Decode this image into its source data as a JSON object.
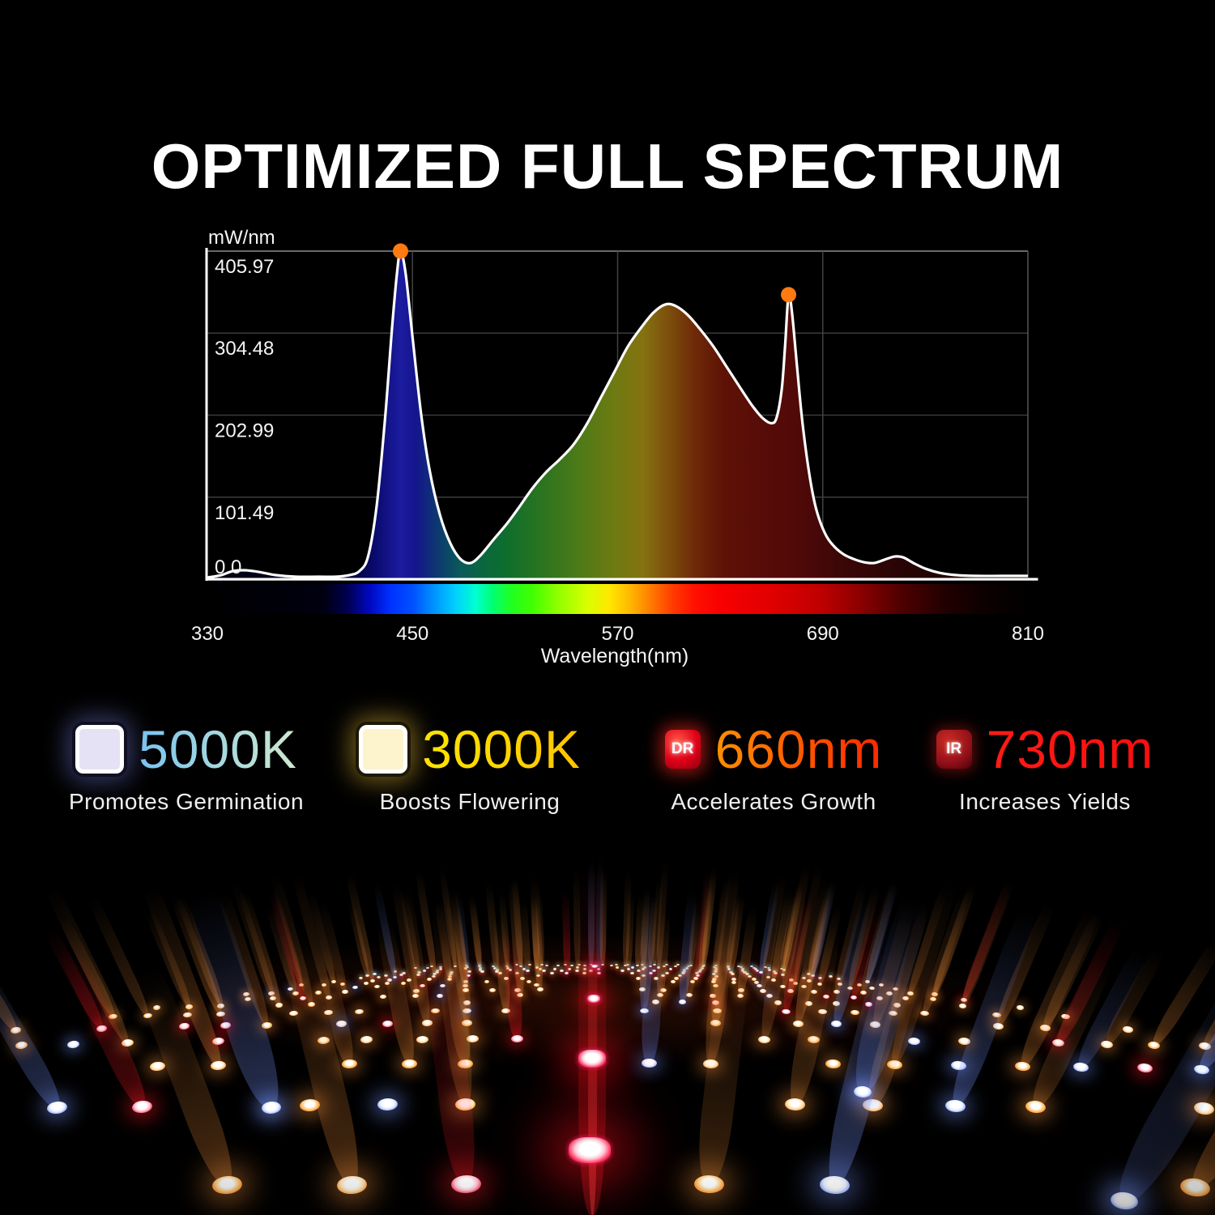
{
  "title": "OPTIMIZED FULL SPECTRUM",
  "chart_data": {
    "type": "area",
    "title": "OPTIMIZED FULL SPECTRUM",
    "unit_label": "mW/nm",
    "xlabel": "Wavelength(nm)",
    "x_ticks": [
      "330",
      "450",
      "570",
      "690",
      "810"
    ],
    "y_ticks": [
      "405.97",
      "304.48",
      "202.99",
      "101.49",
      "0.0"
    ],
    "xlim": [
      330,
      810
    ],
    "ylim": [
      0,
      405.97
    ],
    "grid": true,
    "line_color": "#ffffff",
    "marker_color": "#ff7a10",
    "peak_markers": [
      {
        "wavelength": 443,
        "value": 405.97
      },
      {
        "wavelength": 670,
        "value": 352
      }
    ],
    "series": [
      {
        "name": "spectral power distribution",
        "points": [
          [
            330,
            2
          ],
          [
            338,
            5
          ],
          [
            345,
            10
          ],
          [
            352,
            11
          ],
          [
            360,
            9
          ],
          [
            370,
            5
          ],
          [
            382,
            3
          ],
          [
            395,
            3
          ],
          [
            405,
            3
          ],
          [
            413,
            5
          ],
          [
            419,
            10
          ],
          [
            424,
            28
          ],
          [
            429,
            90
          ],
          [
            434,
            200
          ],
          [
            438,
            310
          ],
          [
            441,
            380
          ],
          [
            443,
            406
          ],
          [
            446,
            378
          ],
          [
            450,
            300
          ],
          [
            455,
            205
          ],
          [
            460,
            135
          ],
          [
            466,
            80
          ],
          [
            472,
            45
          ],
          [
            478,
            25
          ],
          [
            484,
            20
          ],
          [
            490,
            30
          ],
          [
            497,
            48
          ],
          [
            505,
            68
          ],
          [
            512,
            88
          ],
          [
            520,
            112
          ],
          [
            528,
            132
          ],
          [
            536,
            148
          ],
          [
            544,
            166
          ],
          [
            552,
            192
          ],
          [
            560,
            224
          ],
          [
            568,
            256
          ],
          [
            576,
            288
          ],
          [
            584,
            312
          ],
          [
            591,
            330
          ],
          [
            598,
            340
          ],
          [
            604,
            338
          ],
          [
            611,
            327
          ],
          [
            618,
            310
          ],
          [
            626,
            288
          ],
          [
            634,
            262
          ],
          [
            642,
            236
          ],
          [
            649,
            214
          ],
          [
            655,
            199
          ],
          [
            660,
            193
          ],
          [
            663,
            200
          ],
          [
            666,
            235
          ],
          [
            668,
            290
          ],
          [
            670,
            352
          ],
          [
            672,
            330
          ],
          [
            675,
            262
          ],
          [
            678,
            196
          ],
          [
            682,
            132
          ],
          [
            686,
            88
          ],
          [
            691,
            58
          ],
          [
            696,
            42
          ],
          [
            702,
            31
          ],
          [
            708,
            25
          ],
          [
            714,
            21
          ],
          [
            720,
            20
          ],
          [
            726,
            24
          ],
          [
            732,
            28
          ],
          [
            737,
            27
          ],
          [
            743,
            20
          ],
          [
            750,
            13
          ],
          [
            758,
            8
          ],
          [
            768,
            5
          ],
          [
            780,
            4
          ],
          [
            795,
            4
          ],
          [
            810,
            4
          ]
        ]
      }
    ],
    "area_fill_stops": [
      [
        330,
        "#000010"
      ],
      [
        410,
        "#00002a"
      ],
      [
        428,
        "#0a0a6e"
      ],
      [
        443,
        "#1c1ca0"
      ],
      [
        452,
        "#15158c"
      ],
      [
        465,
        "#0d3a6e"
      ],
      [
        478,
        "#0a5a5a"
      ],
      [
        490,
        "#0a6640"
      ],
      [
        505,
        "#0e6e2c"
      ],
      [
        525,
        "#2a7420"
      ],
      [
        548,
        "#4e7a18"
      ],
      [
        568,
        "#6e7a12"
      ],
      [
        585,
        "#857210"
      ],
      [
        600,
        "#7c4e0c"
      ],
      [
        615,
        "#6e2a08"
      ],
      [
        632,
        "#5e1206"
      ],
      [
        655,
        "#560c08"
      ],
      [
        672,
        "#520a08"
      ],
      [
        700,
        "#3c0707"
      ],
      [
        740,
        "#260404"
      ],
      [
        810,
        "#140202"
      ]
    ],
    "spectrum_bar_stops": [
      [
        330,
        "#000000"
      ],
      [
        398,
        "#000010"
      ],
      [
        412,
        "#000050"
      ],
      [
        425,
        "#0008c0"
      ],
      [
        437,
        "#0030ff"
      ],
      [
        450,
        "#0050ff"
      ],
      [
        462,
        "#0090ff"
      ],
      [
        475,
        "#00d0ff"
      ],
      [
        487,
        "#00ffd0"
      ],
      [
        497,
        "#00ff70"
      ],
      [
        508,
        "#20ff20"
      ],
      [
        520,
        "#40ff00"
      ],
      [
        535,
        "#90ff00"
      ],
      [
        552,
        "#d8ff00"
      ],
      [
        565,
        "#ffe800"
      ],
      [
        578,
        "#ffb400"
      ],
      [
        590,
        "#ff7800"
      ],
      [
        602,
        "#ff3c00"
      ],
      [
        615,
        "#ff1000"
      ],
      [
        630,
        "#f80000"
      ],
      [
        660,
        "#e00000"
      ],
      [
        688,
        "#c00000"
      ],
      [
        710,
        "#900000"
      ],
      [
        735,
        "#500000"
      ],
      [
        762,
        "#200000"
      ],
      [
        785,
        "#0c0000"
      ],
      [
        810,
        "#000000"
      ]
    ]
  },
  "features": {
    "items": [
      {
        "icon": "led-chip-5000k",
        "value": "5000K",
        "value_colors": [
          "#79c2ef",
          "#a5d8e0",
          "#cfe9cd"
        ],
        "description": "Promotes Germination"
      },
      {
        "icon": "led-chip-3000k",
        "value": "3000K",
        "value_colors": [
          "#ffe400",
          "#ffd500",
          "#ffc300"
        ],
        "description": "Boosts Flowering"
      },
      {
        "icon": "led-chip-deep-red",
        "badge_text": "DR",
        "value": "660nm",
        "value_colors": [
          "#ff9000",
          "#ff5a00",
          "#ff2600"
        ],
        "description": "Accelerates Growth"
      },
      {
        "icon": "led-chip-infrared",
        "badge_text": "IR",
        "value": "730nm",
        "value_colors": [
          "#ff1c16",
          "#ff1512",
          "#f50f0f"
        ],
        "description": "Increases Yields"
      }
    ]
  },
  "led_panel": {
    "description": "Low-angle photo of a quantum-board LED grow-light array with upward light beams",
    "palette": {
      "warm_core": "#ffffff",
      "warm_mid": "#ffe6bc",
      "warm_edge": "#ff9a2e",
      "amber_mid": "#ffd089",
      "amber_edge": "#ff8316",
      "cool_mid": "#e8efff",
      "cool_edge": "#7e9cff",
      "red_mid": "#ffc8d8",
      "red_edge": "#ff2a50",
      "warm_beam": "rgba(255,150,60,0.32)",
      "cool_beam": "rgba(120,150,255,0.38)",
      "red_beam": "rgba(255,25,35,0.40)"
    }
  }
}
